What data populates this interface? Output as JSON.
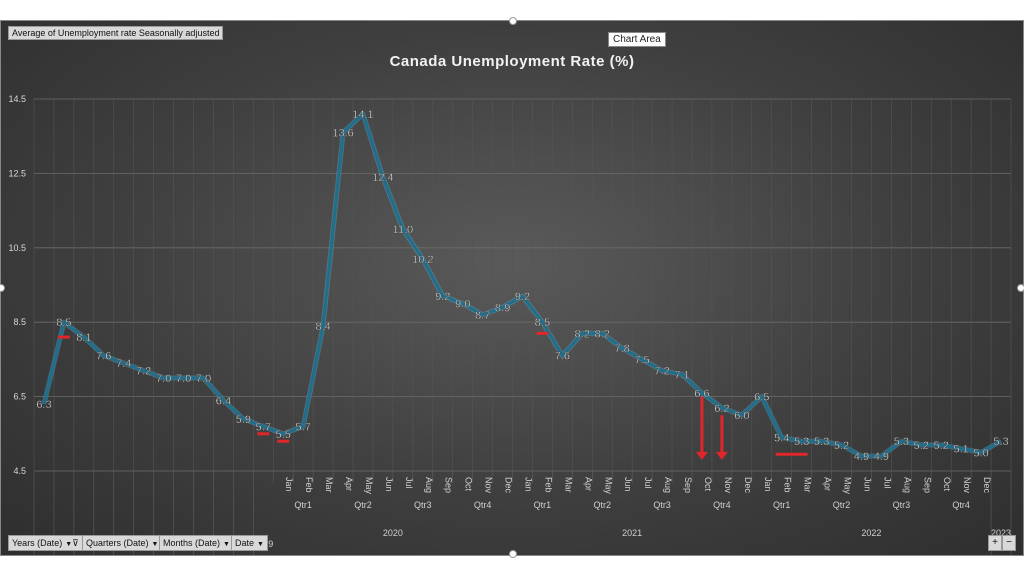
{
  "pivot_field_tag": "Average of Unemployment rate Seasonally adjusted",
  "tooltip": "Chart Area",
  "field_buttons": [
    {
      "label": "Years (Date)",
      "icon": "filter-dropdown-icon"
    },
    {
      "label": "Quarters (Date)",
      "icon": "dropdown-icon"
    },
    {
      "label": "Months (Date)",
      "icon": "dropdown-icon"
    },
    {
      "label": "Date",
      "icon": "dropdown-icon"
    }
  ],
  "zoom_buttons": {
    "expand": "+",
    "collapse": "−"
  },
  "colors": {
    "line": "#1f6e8c",
    "line_glow": "#58b9dc",
    "annotation": "#e0262a",
    "background": "#3f3f3f"
  },
  "chart_data": {
    "type": "line",
    "title": "Canada Unemployment Rate (%)",
    "xlabel": "",
    "ylabel": "",
    "ylim": [
      4.5,
      14.5
    ],
    "yticks": [
      "4.5",
      "6.5",
      "8.5",
      "10.5",
      "12.5",
      "14.5"
    ],
    "grid": true,
    "legend": "none",
    "categories": [
      "2008",
      "2009",
      "2010",
      "2011",
      "2012",
      "2013",
      "2014",
      "2015",
      "2016",
      "2017",
      "2018",
      "2019",
      "2020 Qtr1 Jan",
      "2020 Qtr1 Feb",
      "2020 Qtr1 Mar",
      "2020 Qtr2 Apr",
      "2020 Qtr2 May",
      "2020 Qtr2 Jun",
      "2020 Qtr3 Jul",
      "2020 Qtr3 Aug",
      "2020 Qtr3 Sep",
      "2020 Qtr4 Oct",
      "2020 Qtr4 Nov",
      "2020 Qtr4 Dec",
      "2021 Qtr1 Jan",
      "2021 Qtr1 Feb",
      "2021 Qtr1 Mar",
      "2021 Qtr2 Apr",
      "2021 Qtr2 May",
      "2021 Qtr2 Jun",
      "2021 Qtr3 Jul",
      "2021 Qtr3 Aug",
      "2021 Qtr3 Sep",
      "2021 Qtr4 Oct",
      "2021 Qtr4 Nov",
      "2021 Qtr4 Dec",
      "2022 Qtr1 Jan",
      "2022 Qtr1 Feb",
      "2022 Qtr1 Mar",
      "2022 Qtr2 Apr",
      "2022 Qtr2 May",
      "2022 Qtr2 Jun",
      "2022 Qtr3 Jul",
      "2022 Qtr3 Aug",
      "2022 Qtr3 Sep",
      "2022 Qtr4 Oct",
      "2022 Qtr4 Nov",
      "2022 Qtr4 Dec",
      "2023"
    ],
    "values": [
      6.3,
      8.5,
      8.1,
      7.6,
      7.4,
      7.2,
      7.0,
      7.0,
      7.0,
      6.4,
      5.9,
      5.7,
      5.5,
      5.7,
      8.4,
      13.6,
      14.1,
      12.4,
      11.0,
      10.2,
      9.2,
      9.0,
      8.7,
      8.9,
      9.2,
      8.5,
      7.6,
      8.2,
      8.2,
      7.8,
      7.5,
      7.2,
      7.1,
      6.6,
      6.2,
      6.0,
      6.5,
      5.4,
      5.3,
      5.3,
      5.2,
      4.9,
      4.9,
      5.3,
      5.2,
      5.2,
      5.1,
      5.0,
      5.3
    ],
    "labels": [
      "6.3",
      "8.5",
      "8.1",
      "7.6",
      "7.4",
      "7.2",
      "7.0",
      "7.0",
      "7.0",
      "6.4",
      "5.9",
      "5.7",
      "5.5",
      "5.7",
      "8.4",
      "13.6",
      "14.1",
      "12.4",
      "11.0",
      "10.2",
      "9.2",
      "9.0",
      "8.7",
      "8.9",
      "9.2",
      "8.5",
      "7.6",
      "8.2",
      "8.2",
      "7.8",
      "7.5",
      "7.2",
      "7.1",
      "6.6",
      "6.2",
      "6.0",
      "6.5",
      "5.4",
      "5.3",
      "5.3",
      "5.2",
      "4.9",
      "4.9",
      "5.3",
      "5.2",
      "5.2",
      "5.1",
      "5.0",
      "5.3"
    ],
    "axis_years": {
      "singles": [
        "2008",
        "2009",
        "2010",
        "2011",
        "2012",
        "2013",
        "2014",
        "2015",
        "2016",
        "2017",
        "2018",
        "2019"
      ],
      "groups": [
        "2020",
        "2021",
        "2022"
      ],
      "last": "2023"
    },
    "axis_months": [
      "Jan",
      "Feb",
      "Mar",
      "Apr",
      "May",
      "Jun",
      "Jul",
      "Aug",
      "Sep",
      "Oct",
      "Nov",
      "Dec",
      "Jan",
      "Feb",
      "Mar",
      "Apr",
      "May",
      "Jun",
      "Jul",
      "Aug",
      "Sep",
      "Oct",
      "Nov",
      "Dec",
      "Jan",
      "Feb",
      "Mar",
      "Apr",
      "May",
      "Jun",
      "Jul",
      "Aug",
      "Sep",
      "Oct",
      "Nov",
      "Dec"
    ],
    "axis_quarters": [
      "Qtr1",
      "Qtr2",
      "Qtr3",
      "Qtr4",
      "Qtr1",
      "Qtr2",
      "Qtr3",
      "Qtr4",
      "Qtr1",
      "Qtr2",
      "Qtr3",
      "Qtr4"
    ],
    "annotations": {
      "red_dashes": [
        {
          "category": "2009",
          "value": 8.1
        },
        {
          "category": "2019",
          "value": 5.5
        },
        {
          "category": "2020 Qtr1 Jan",
          "value": 5.3
        },
        {
          "category": "2021 Qtr1 Feb",
          "value": 8.2
        },
        {
          "category": "2022 Qtr1 Feb",
          "value": 4.95,
          "span_to": "2022 Qtr1 Mar"
        }
      ],
      "red_arrows": [
        {
          "category": "2021 Qtr4 Oct",
          "from": 6.5,
          "to": 4.8
        },
        {
          "category": "2021 Qtr4 Nov",
          "from": 6.0,
          "to": 4.8
        }
      ]
    }
  }
}
